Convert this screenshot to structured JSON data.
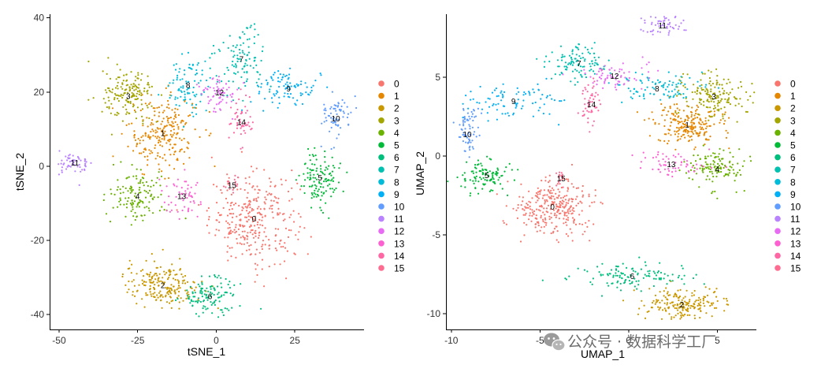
{
  "chart_data": [
    {
      "type": "scatter",
      "xlabel": "tSNE_1",
      "ylabel": "tSNE_2",
      "xlim": [
        -53,
        47
      ],
      "ylim": [
        -44,
        41
      ],
      "xticks": [
        "-50",
        "-25",
        "0",
        "25"
      ],
      "xtick_values": [
        -50,
        -25,
        0,
        25
      ],
      "yticks": [
        "40",
        "20",
        "0",
        "-20",
        "-40"
      ],
      "ytick_values": [
        40,
        20,
        0,
        -20,
        -40
      ],
      "grid": false,
      "clusters": [
        {
          "label": "0",
          "cx": 12,
          "cy": -14,
          "sx": 7,
          "sy": 6,
          "n": 320
        },
        {
          "label": "1",
          "cx": -17,
          "cy": 9,
          "sx": 5.5,
          "sy": 5,
          "n": 230
        },
        {
          "label": "2",
          "cx": -17,
          "cy": -32,
          "sx": 6,
          "sy": 3,
          "n": 200
        },
        {
          "label": "3",
          "cx": -28,
          "cy": 19,
          "sx": 4,
          "sy": 3.5,
          "n": 160
        },
        {
          "label": "4",
          "cx": -25,
          "cy": -8,
          "sx": 4.5,
          "sy": 3.5,
          "n": 130
        },
        {
          "label": "5",
          "cx": 33,
          "cy": -3,
          "sx": 3.5,
          "sy": 4,
          "n": 120
        },
        {
          "label": "6",
          "cx": -2,
          "cy": -35,
          "sx": 4.5,
          "sy": 2.5,
          "n": 120
        },
        {
          "label": "7",
          "cx": 8,
          "cy": 29,
          "sx": 4,
          "sy": 4.5,
          "n": 110
        },
        {
          "label": "8",
          "cx": -9,
          "cy": 22,
          "sx": 3.5,
          "sy": 3.5,
          "n": 90
        },
        {
          "label": "9",
          "cx": 23,
          "cy": 21,
          "sx": 5,
          "sy": 2.5,
          "n": 90
        },
        {
          "label": "10",
          "cx": 38,
          "cy": 13,
          "sx": 2.5,
          "sy": 3,
          "n": 70
        },
        {
          "label": "11",
          "cx": -45,
          "cy": 1,
          "sx": 2.5,
          "sy": 2,
          "n": 55
        },
        {
          "label": "12",
          "cx": 1,
          "cy": 20,
          "sx": 3,
          "sy": 2.5,
          "n": 65
        },
        {
          "label": "13",
          "cx": -11,
          "cy": -8,
          "sx": 3,
          "sy": 2.5,
          "n": 55
        },
        {
          "label": "14",
          "cx": 8,
          "cy": 12,
          "sx": 2.5,
          "sy": 3,
          "n": 50
        },
        {
          "label": "15",
          "cx": 5,
          "cy": -5,
          "sx": 1.5,
          "sy": 1.5,
          "n": 15
        }
      ],
      "legend_position": "right"
    },
    {
      "type": "scatter",
      "xlabel": "UMAP_1",
      "ylabel": "UMAP_2",
      "xlim": [
        -10.3,
        7.2
      ],
      "ylim": [
        -11,
        9
      ],
      "xticks": [
        "-10",
        "-5",
        "0",
        "5"
      ],
      "xtick_values": [
        -10,
        -5,
        0,
        5
      ],
      "yticks": [
        "5",
        "0",
        "-5",
        "-10"
      ],
      "ytick_values": [
        5,
        0,
        -5,
        -10
      ],
      "grid": false,
      "clusters": [
        {
          "label": "0",
          "cx": -4.3,
          "cy": -3.2,
          "sx": 1.1,
          "sy": 0.9,
          "n": 300
        },
        {
          "label": "1",
          "cx": 3.3,
          "cy": 2.0,
          "sx": 1.0,
          "sy": 0.6,
          "n": 220
        },
        {
          "label": "2",
          "cx": 3.0,
          "cy": -9.4,
          "sx": 1.1,
          "sy": 0.5,
          "n": 190
        },
        {
          "label": "3",
          "cx": 4.8,
          "cy": 3.8,
          "sx": 0.9,
          "sy": 0.7,
          "n": 160
        },
        {
          "label": "4",
          "cx": 5.0,
          "cy": -0.8,
          "sx": 0.9,
          "sy": 0.6,
          "n": 130
        },
        {
          "label": "5",
          "cx": -8.0,
          "cy": -1.2,
          "sx": 0.8,
          "sy": 0.5,
          "n": 110
        },
        {
          "label": "6",
          "cx": 0.2,
          "cy": -7.6,
          "sx": 1.6,
          "sy": 0.4,
          "n": 120
        },
        {
          "label": "7",
          "cx": -2.8,
          "cy": 5.9,
          "sx": 0.8,
          "sy": 0.6,
          "n": 110
        },
        {
          "label": "8",
          "cx": 1.6,
          "cy": 4.3,
          "sx": 1.2,
          "sy": 0.5,
          "n": 90
        },
        {
          "label": "9",
          "cx": -6.5,
          "cy": 3.5,
          "sx": 1.4,
          "sy": 0.6,
          "n": 90
        },
        {
          "label": "10",
          "cx": -9.1,
          "cy": 1.4,
          "sx": 0.3,
          "sy": 0.9,
          "n": 70
        },
        {
          "label": "11",
          "cx": 1.9,
          "cy": 8.3,
          "sx": 0.6,
          "sy": 0.4,
          "n": 55
        },
        {
          "label": "12",
          "cx": -0.8,
          "cy": 5.1,
          "sx": 0.9,
          "sy": 0.4,
          "n": 65
        },
        {
          "label": "13",
          "cx": 2.4,
          "cy": -0.5,
          "sx": 1.0,
          "sy": 0.4,
          "n": 60
        },
        {
          "label": "14",
          "cx": -2.1,
          "cy": 3.3,
          "sx": 0.3,
          "sy": 0.8,
          "n": 50
        },
        {
          "label": "15",
          "cx": -3.8,
          "cy": -1.4,
          "sx": 0.2,
          "sy": 0.3,
          "n": 15
        }
      ],
      "legend_position": "right"
    }
  ],
  "legend": {
    "entries": [
      "0",
      "1",
      "2",
      "3",
      "4",
      "5",
      "6",
      "7",
      "8",
      "9",
      "10",
      "11",
      "12",
      "13",
      "14",
      "15"
    ],
    "colors": [
      "#F8766D",
      "#E58700",
      "#C99800",
      "#A3A500",
      "#6BB100",
      "#00BA38",
      "#00BF7D",
      "#00C0AF",
      "#00BCD8",
      "#00B0F6",
      "#619CFF",
      "#B983FF",
      "#E76BF3",
      "#FD61D1",
      "#FF67A4",
      "#FF6C91"
    ]
  },
  "watermark": {
    "text": "公众号 · 数据科学工厂",
    "icon": "wechat-icon"
  }
}
